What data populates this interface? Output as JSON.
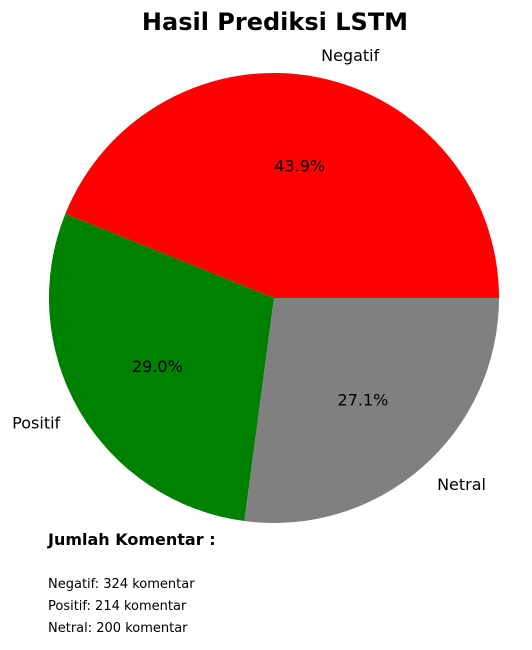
{
  "chart_data": {
    "type": "pie",
    "title": "Hasil Prediksi LSTM",
    "slices": [
      {
        "label": "Negatif",
        "value": 324,
        "pct_label": "43.9%",
        "color": "#ff0000"
      },
      {
        "label": "Positif",
        "value": 214,
        "pct_label": "29.0%",
        "color": "#008000"
      },
      {
        "label": "Netral",
        "value": 200,
        "pct_label": "27.1%",
        "color": "#808080"
      }
    ]
  },
  "summary": {
    "heading": "Jumlah Komentar :",
    "lines": [
      "Negatif: 324 komentar",
      "Positif: 214 komentar",
      "Netral: 200 komentar"
    ]
  }
}
